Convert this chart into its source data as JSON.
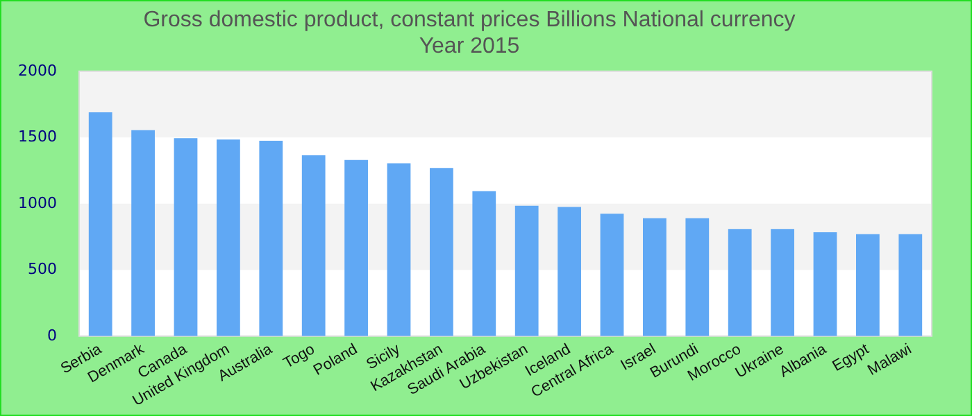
{
  "chart_data": {
    "type": "bar",
    "title": "Gross domestic product, constant prices Billions National currency",
    "subtitle": "Year 2015",
    "categories": [
      "Serbia",
      "Denmark",
      "Canada",
      "United Kingdom",
      "Australia",
      "Togo",
      "Poland",
      "Sicily",
      "Kazakhstan",
      "Saudi Arabia",
      "Uzbekistan",
      "Iceland",
      "Central Africa",
      "Israel",
      "Burundi",
      "Morocco",
      "Ukraine",
      "Albania",
      "Egypt",
      "Malawi"
    ],
    "values": [
      1690,
      1555,
      1495,
      1485,
      1475,
      1365,
      1330,
      1305,
      1270,
      1095,
      985,
      975,
      925,
      890,
      890,
      810,
      810,
      785,
      770,
      770
    ],
    "color": "#60a8f4",
    "ylim": [
      0,
      2000
    ],
    "yticks": [
      0,
      500,
      1000,
      1500,
      2000
    ]
  }
}
